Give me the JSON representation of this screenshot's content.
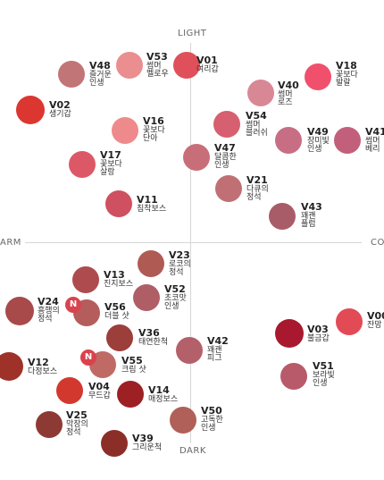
{
  "axes": {
    "top": "LIGHT",
    "bottom": "DARK",
    "left": "ARM",
    "right": "CO"
  },
  "badges": {
    "v56": "N",
    "v55": "N"
  },
  "shades": [
    {
      "id": "v01",
      "code": "V01",
      "name": [
        "여리갑"
      ],
      "color": "#e0505a"
    },
    {
      "id": "v53",
      "code": "V53",
      "name": [
        "썸머",
        "멜로우"
      ],
      "color": "#ea8e90"
    },
    {
      "id": "v48",
      "code": "V48",
      "name": [
        "즐거운",
        "인생"
      ],
      "color": "#c27576"
    },
    {
      "id": "v18",
      "code": "V18",
      "name": [
        "꽃보다",
        "발랄"
      ],
      "color": "#f0506c"
    },
    {
      "id": "v40",
      "code": "V40",
      "name": [
        "썸머",
        "로즈"
      ],
      "color": "#d88894"
    },
    {
      "id": "v02",
      "code": "V02",
      "name": [
        "생기갑"
      ],
      "color": "#dc3630"
    },
    {
      "id": "v16",
      "code": "V16",
      "name": [
        "꽃보다",
        "단아"
      ],
      "color": "#ef8a8c"
    },
    {
      "id": "v54",
      "code": "V54",
      "name": [
        "썸머",
        "블러쉬"
      ],
      "color": "#d66070"
    },
    {
      "id": "v49",
      "code": "V49",
      "name": [
        "장미빛",
        "인생"
      ],
      "color": "#c86e84"
    },
    {
      "id": "v41",
      "code": "V41",
      "name": [
        "썸머",
        "베리"
      ],
      "color": "#c2607c"
    },
    {
      "id": "v47",
      "code": "V47",
      "name": [
        "달콤한",
        "인생"
      ],
      "color": "#c86e78"
    },
    {
      "id": "v17",
      "code": "V17",
      "name": [
        "꽃보다",
        "살랑"
      ],
      "color": "#dd5866"
    },
    {
      "id": "v21",
      "code": "V21",
      "name": [
        "다큐의",
        "정석"
      ],
      "color": "#c07074"
    },
    {
      "id": "v11",
      "code": "V11",
      "name": [
        "침착보스"
      ],
      "color": "#cf5060"
    },
    {
      "id": "v43",
      "code": "V43",
      "name": [
        "꽤괜",
        "플럼"
      ],
      "color": "#a85c68"
    },
    {
      "id": "v23",
      "code": "V23",
      "name": [
        "로코의",
        "정석"
      ],
      "color": "#b05a54"
    },
    {
      "id": "v13",
      "code": "V13",
      "name": [
        "진지보스"
      ],
      "color": "#ad4b4e"
    },
    {
      "id": "v52",
      "code": "V52",
      "name": [
        "초코맛",
        "인생"
      ],
      "color": "#b05e66"
    },
    {
      "id": "v24",
      "code": "V24",
      "name": [
        "흥행의",
        "정석"
      ],
      "color": "#a84a4a"
    },
    {
      "id": "v56",
      "code": "V56",
      "name": [
        "더블 샷"
      ],
      "color": "#b55c5c"
    },
    {
      "id": "v00",
      "code": "V00",
      "name": [
        "잔망"
      ],
      "color": "#e24a56"
    },
    {
      "id": "v03",
      "code": "V03",
      "name": [
        "불금갑"
      ],
      "color": "#a8182e"
    },
    {
      "id": "v36",
      "code": "V36",
      "name": [
        "태연한척"
      ],
      "color": "#9c3e3a"
    },
    {
      "id": "v42",
      "code": "V42",
      "name": [
        "꽤괜",
        "피그"
      ],
      "color": "#b4606a"
    },
    {
      "id": "v12",
      "code": "V12",
      "name": [
        "다정보스"
      ],
      "color": "#9e3228"
    },
    {
      "id": "v55",
      "code": "V55",
      "name": [
        "크림 샷"
      ],
      "color": "#c06a66"
    },
    {
      "id": "v51",
      "code": "V51",
      "name": [
        "보라빛",
        "인생"
      ],
      "color": "#b85a6a"
    },
    {
      "id": "v04",
      "code": "V04",
      "name": [
        "무드갑"
      ],
      "color": "#d2382e"
    },
    {
      "id": "v14",
      "code": "V14",
      "name": [
        "매정보스"
      ],
      "color": "#9c2024"
    },
    {
      "id": "v50",
      "code": "V50",
      "name": [
        "고독한",
        "인생"
      ],
      "color": "#b06058"
    },
    {
      "id": "v25",
      "code": "V25",
      "name": [
        "막장의",
        "정석"
      ],
      "color": "#8e3a34"
    },
    {
      "id": "v39",
      "code": "V39",
      "name": [
        "그리운척"
      ],
      "color": "#8c2e28"
    }
  ]
}
